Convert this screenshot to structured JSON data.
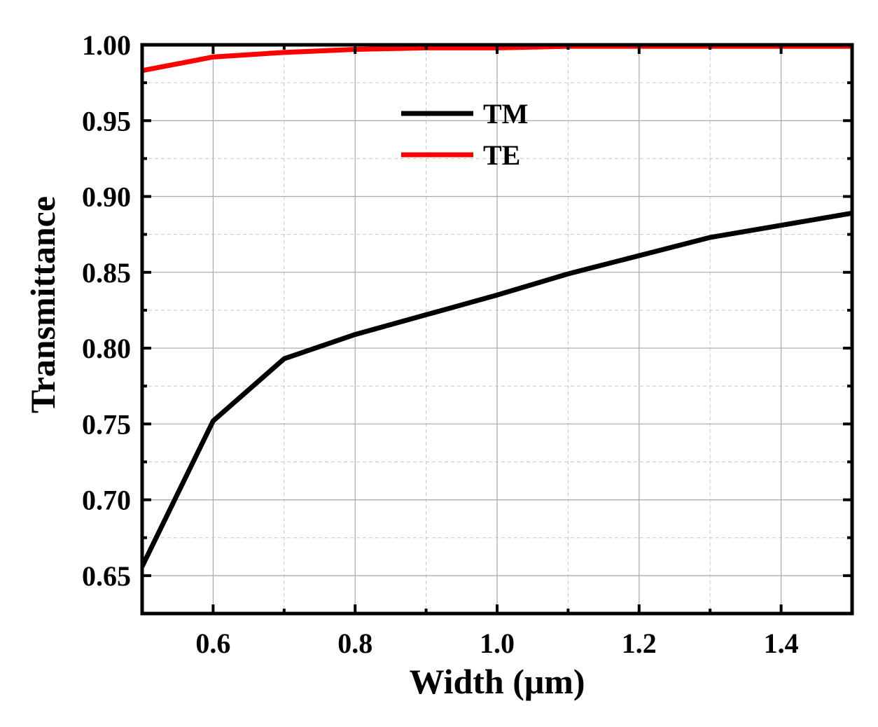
{
  "chart_data": {
    "type": "line",
    "title": "",
    "xlabel": "Width (μm)",
    "ylabel": "Transmittance",
    "xlim": [
      0.5,
      1.5
    ],
    "ylim": [
      0.625,
      1.0
    ],
    "xticks": [
      0.6,
      0.8,
      1.0,
      1.2,
      1.4
    ],
    "xtick_labels": [
      "0.6",
      "0.8",
      "1.0",
      "1.2",
      "1.4"
    ],
    "yticks": [
      0.65,
      0.7,
      0.75,
      0.8,
      0.85,
      0.9,
      0.95,
      1.0
    ],
    "ytick_labels": [
      "0.65",
      "0.70",
      "0.75",
      "0.80",
      "0.85",
      "0.90",
      "0.95",
      "1.00"
    ],
    "grid": true,
    "legend_position": "top-center",
    "x": [
      0.5,
      0.6,
      0.7,
      0.8,
      0.9,
      1.0,
      1.1,
      1.2,
      1.3,
      1.4,
      1.5
    ],
    "series": [
      {
        "name": "TM",
        "color": "#000000",
        "values": [
          0.656,
          0.752,
          0.793,
          0.809,
          0.822,
          0.835,
          0.849,
          0.861,
          0.873,
          0.881,
          0.889
        ]
      },
      {
        "name": "TE",
        "color": "#ff0000",
        "values": [
          0.983,
          0.992,
          0.995,
          0.997,
          0.998,
          0.998,
          0.999,
          0.999,
          0.999,
          0.999,
          0.999
        ]
      }
    ]
  }
}
